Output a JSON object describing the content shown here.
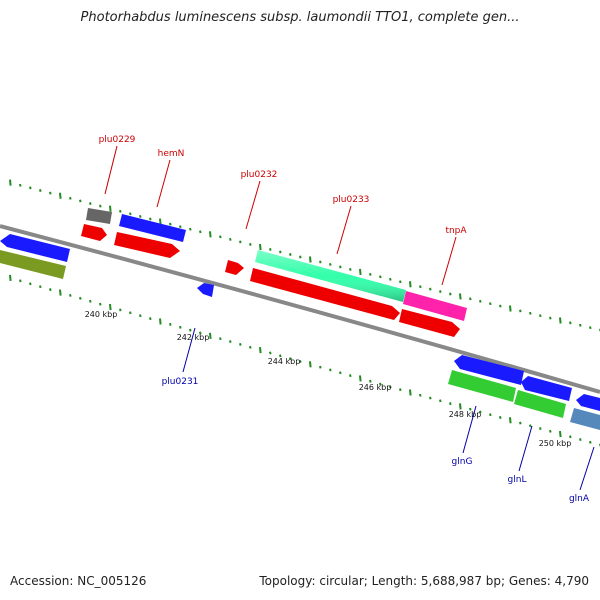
{
  "header": {
    "title": "Photorhabdus luminescens subsp. laumondii TTO1, complete gen..."
  },
  "footer": {
    "accession": "Accession: NC_005126",
    "stats": "Topology: circular; Length: 5,688,987 bp; Genes: 4,790"
  },
  "colors": {
    "backbone": "#888888",
    "forward_label": "#cc0000",
    "reverse_label": "#0000aa",
    "tick": "#228b22"
  },
  "scale_ticks": [
    {
      "label": "240 kbp"
    },
    {
      "label": "242 kbp"
    },
    {
      "label": "244 kbp"
    },
    {
      "label": "246 kbp"
    },
    {
      "label": "248 kbp"
    },
    {
      "label": "250 kbp"
    }
  ],
  "genes": [
    {
      "name": "plu0229",
      "strand": "forward",
      "color": "#666666"
    },
    {
      "name": "hemN",
      "strand": "forward",
      "color": "#0000ff"
    },
    {
      "name": "plu0231",
      "strand": "reverse",
      "color": "#0000ff"
    },
    {
      "name": "plu0232",
      "strand": "forward",
      "color": "#ff0000"
    },
    {
      "name": "plu0233",
      "strand": "forward",
      "color": "#33ffaa"
    },
    {
      "name": "tnpA",
      "strand": "forward",
      "color": "#ff22aa"
    },
    {
      "name": "glnG",
      "strand": "reverse",
      "color": "#33cc33"
    },
    {
      "name": "glnL",
      "strand": "reverse",
      "color": "#33cc33"
    },
    {
      "name": "glnA",
      "strand": "reverse",
      "color": "#5588bb"
    }
  ]
}
